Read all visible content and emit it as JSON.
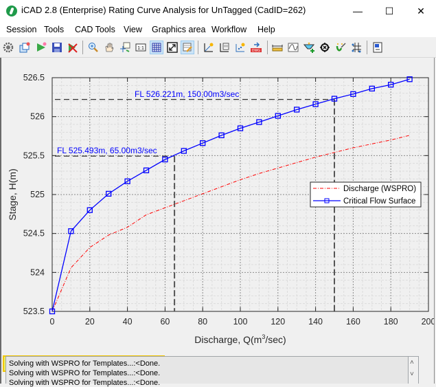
{
  "window": {
    "title": "iCAD 2.8  (Enterprise) Rating Curve Analysis for UnTagged (CadID=262)",
    "controls": {
      "minimize": "—",
      "maximize": "☐",
      "close": "✕"
    }
  },
  "menu": {
    "items": [
      "Session",
      "Tools",
      "CAD Tools",
      "View",
      "Graphics area",
      "Workflow",
      "Help"
    ]
  },
  "toolbar": {
    "buttons": [
      {
        "icon": "gear-icon"
      },
      {
        "icon": "new-window-icon"
      },
      {
        "icon": "run-icon"
      },
      {
        "icon": "save-icon"
      },
      {
        "icon": "delete-icon"
      },
      {
        "icon": "zoom-in-icon"
      },
      {
        "icon": "pan-hand-icon"
      },
      {
        "icon": "pick-point-icon"
      },
      {
        "icon": "one-to-one-icon",
        "label": "1:1"
      },
      {
        "icon": "grid-icon",
        "active": true
      },
      {
        "icon": "fit-extent-icon"
      },
      {
        "icon": "edit-table-icon",
        "active": true
      },
      {
        "icon": "axis-star-icon"
      },
      {
        "icon": "chart-doc-icon"
      },
      {
        "icon": "scatter-star-icon"
      },
      {
        "icon": "export-dwg-icon",
        "label": "DWG"
      },
      {
        "icon": "measure-ruler-icon"
      },
      {
        "icon": "curve-icon"
      },
      {
        "icon": "add-water-icon"
      },
      {
        "icon": "target-icon"
      },
      {
        "icon": "magic-wand-icon"
      },
      {
        "icon": "network-icon"
      },
      {
        "icon": "panel-icon"
      }
    ]
  },
  "chart_data": {
    "type": "line",
    "title": "",
    "xlabel": "Discharge, Q(m³/sec)",
    "ylabel": "Stage, H(m)",
    "xlim": [
      0,
      200
    ],
    "ylim": [
      523.5,
      526.5
    ],
    "xticks": [
      0,
      20,
      40,
      60,
      80,
      100,
      120,
      140,
      160,
      180,
      200
    ],
    "yticks": [
      523.5,
      524,
      524.5,
      525,
      525.5,
      526,
      526.5
    ],
    "ytick_labels": [
      "523.5",
      "524",
      "524.5",
      "525",
      "525.5",
      "526",
      "526.5"
    ],
    "grid": "major dotted + minor dashed",
    "legend_position": "right-middle",
    "series": [
      {
        "name": "Discharge (WSPRO)",
        "color": "#ff0000",
        "style": "dash-dot",
        "x": [
          0,
          10,
          20,
          30,
          40,
          50,
          60,
          70,
          80,
          90,
          100,
          110,
          120,
          130,
          140,
          150,
          160,
          170,
          180,
          190
        ],
        "values": [
          523.5,
          524.06,
          524.32,
          524.48,
          524.58,
          524.74,
          524.83,
          524.92,
          525.01,
          525.1,
          525.19,
          525.27,
          525.34,
          525.41,
          525.48,
          525.54,
          525.6,
          525.65,
          525.7,
          525.76
        ]
      },
      {
        "name": "Critical Flow Surface",
        "color": "#0000ff",
        "style": "solid-square-markers",
        "x": [
          0,
          10,
          20,
          30,
          40,
          50,
          60,
          70,
          80,
          90,
          100,
          110,
          120,
          130,
          140,
          150,
          160,
          170,
          180,
          190
        ],
        "values": [
          523.5,
          524.53,
          524.8,
          525.01,
          525.17,
          525.31,
          525.45,
          525.56,
          525.66,
          525.76,
          525.85,
          525.93,
          526.01,
          526.09,
          526.16,
          526.23,
          526.29,
          526.36,
          526.41,
          526.48
        ]
      }
    ],
    "annotations": [
      {
        "text": "FL 526.221m, 150.00m3/sec",
        "x": 150,
        "y": 526.221,
        "color": "#0000ff"
      },
      {
        "text": "FL 525.493m, 65.00m3/sec",
        "x": 65,
        "y": 525.493,
        "color": "#0000ff"
      }
    ]
  },
  "log": {
    "lines": [
      "Solving with WSPRO for Templates...:<Done.",
      "Solving with WSPRO for Templates...:<Done.",
      "Solving with WSPRO for Templates...:<Done."
    ],
    "scroll_up": "˄",
    "scroll_down": "˅"
  }
}
